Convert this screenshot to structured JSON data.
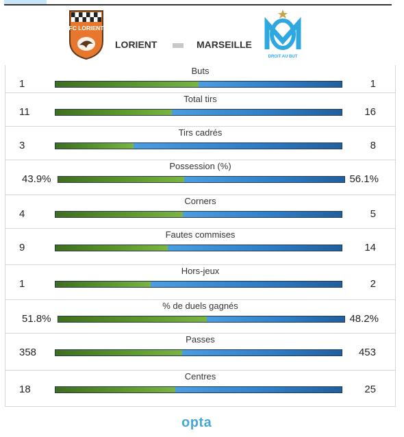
{
  "header": {
    "home_team": "LORIENT",
    "away_team": "MARSEILLE",
    "home_logo_text": "FC LORIENT",
    "away_logo_text": "DROIT AU BUT"
  },
  "colors": {
    "home_bar": "#5f9a2c",
    "away_bar": "#2f7fc8",
    "logo_home": "#e8772e",
    "logo_away": "#2fa8e0"
  },
  "footer": {
    "brand": "opta"
  },
  "chart_data": {
    "type": "bar",
    "orientation": "horizontal-split",
    "series": [
      {
        "name": "LORIENT",
        "values": [
          1,
          11,
          3,
          43.9,
          4,
          9,
          1,
          51.8,
          358,
          18
        ]
      },
      {
        "name": "MARSEILLE",
        "values": [
          1,
          16,
          8,
          56.1,
          5,
          14,
          2,
          48.2,
          453,
          25
        ]
      }
    ],
    "categories": [
      "Buts",
      "Total tirs",
      "Tirs cadrés",
      "Possession (%)",
      "Corners",
      "Fautes commises",
      "Hors-jeux",
      "% de duels gagnés",
      "Passes",
      "Centres"
    ],
    "rows": [
      {
        "label": "Buts",
        "home": "1",
        "away": "1",
        "home_value": 1,
        "away_value": 1
      },
      {
        "label": "Total tirs",
        "home": "11",
        "away": "16",
        "home_value": 11,
        "away_value": 16
      },
      {
        "label": "Tirs cadrés",
        "home": "3",
        "away": "8",
        "home_value": 3,
        "away_value": 8
      },
      {
        "label": "Possession (%)",
        "home": "43.9%",
        "away": "56.1%",
        "home_value": 43.9,
        "away_value": 56.1
      },
      {
        "label": "Corners",
        "home": "4",
        "away": "5",
        "home_value": 4,
        "away_value": 5
      },
      {
        "label": "Fautes commises",
        "home": "9",
        "away": "14",
        "home_value": 9,
        "away_value": 14
      },
      {
        "label": "Hors-jeux",
        "home": "1",
        "away": "2",
        "home_value": 1,
        "away_value": 2
      },
      {
        "label": "% de duels gagnés",
        "home": "51.8%",
        "away": "48.2%",
        "home_value": 51.8,
        "away_value": 48.2
      },
      {
        "label": "Passes",
        "home": "358",
        "away": "453",
        "home_value": 358,
        "away_value": 453
      },
      {
        "label": "Centres",
        "home": "18",
        "away": "25",
        "home_value": 18,
        "away_value": 25
      }
    ]
  }
}
